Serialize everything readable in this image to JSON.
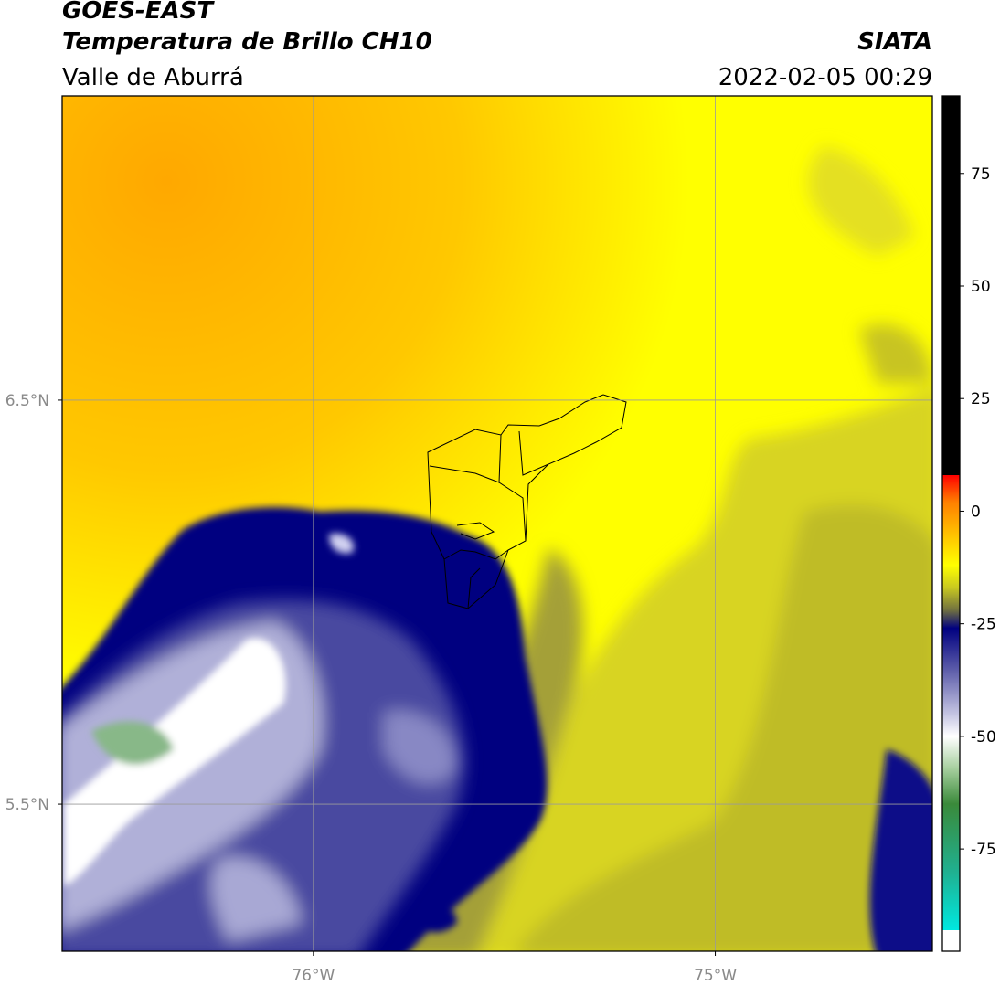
{
  "header": {
    "title": "GOES-EAST",
    "subtitle": "Temperatura de Brillo CH10",
    "region": "Valle de Aburrá",
    "source": "SIATA",
    "datetime": "2022-02-05 00:29"
  },
  "chart_data": {
    "type": "map",
    "xlim": [
      -76.625,
      -74.46
    ],
    "ylim": [
      5.136,
      7.253
    ],
    "xticks": [
      {
        "value": -76,
        "label": "76°W"
      },
      {
        "value": -75,
        "label": "75°W"
      }
    ],
    "yticks": [
      {
        "value": 6.5,
        "label": "6.5°N"
      },
      {
        "value": 5.5,
        "label": "5.5°N"
      }
    ],
    "grid": true,
    "colorbar": {
      "lim": [
        -97.7,
        92.2
      ],
      "ticks": [
        -75,
        -50,
        -25,
        0,
        25,
        50,
        75
      ],
      "stops": [
        {
          "value": -97.7,
          "color": "#ffffff"
        },
        {
          "value": -93,
          "color": "#ffffff"
        },
        {
          "value": -93,
          "color": "#00e8e0"
        },
        {
          "value": -80,
          "color": "#20b090"
        },
        {
          "value": -65,
          "color": "#3a8a3a"
        },
        {
          "value": -57,
          "color": "#a8d0a0"
        },
        {
          "value": -50,
          "color": "#ffffff"
        },
        {
          "value": -45,
          "color": "#c4c4e2"
        },
        {
          "value": -35,
          "color": "#5a5aa8"
        },
        {
          "value": -26,
          "color": "#000080"
        },
        {
          "value": -22,
          "color": "#707040"
        },
        {
          "value": -17,
          "color": "#c8c820"
        },
        {
          "value": -12,
          "color": "#ffff00"
        },
        {
          "value": -5,
          "color": "#ffc000"
        },
        {
          "value": 2,
          "color": "#ff8000"
        },
        {
          "value": 8,
          "color": "#ff0000"
        },
        {
          "value": 8,
          "color": "#000000"
        },
        {
          "value": 92.2,
          "color": "#000000"
        }
      ]
    }
  }
}
